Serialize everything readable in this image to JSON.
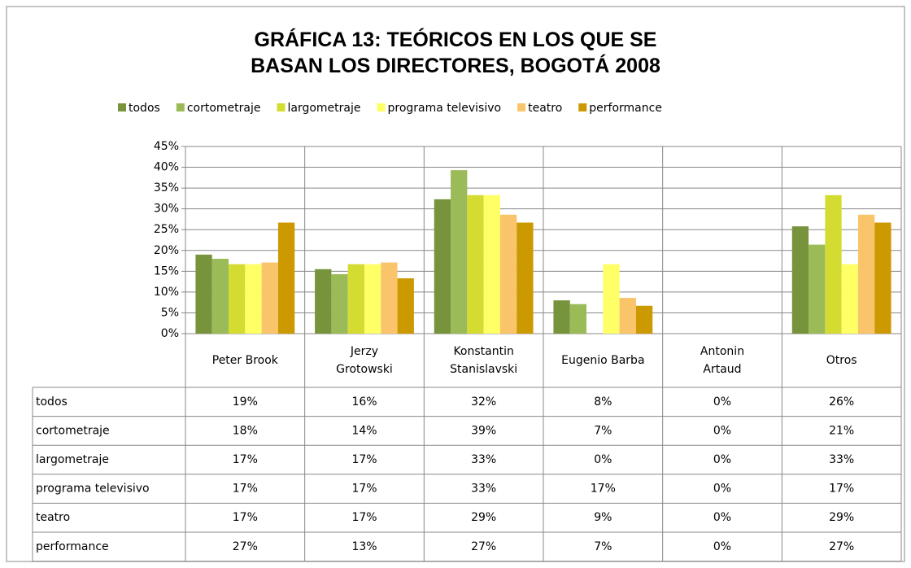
{
  "chart_data": {
    "type": "bar",
    "title": "GRÁFICA 13: TEÓRICOS EN LOS QUE SE BASAN LOS DIRECTORES, BOGOTÁ 2008",
    "categories": [
      "Peter Brook",
      "Jerzy Grotowski",
      "Konstantin Stanislavski",
      "Eugenio Barba",
      "Antonin Artaud",
      "Otros"
    ],
    "series": [
      {
        "name": "todos",
        "color": "#77933c",
        "values": [
          19,
          15.5,
          32.3,
          8,
          0,
          25.8
        ],
        "value_labels": [
          "19%",
          "16%",
          "32%",
          "8%",
          "0%",
          "26%"
        ]
      },
      {
        "name": "cortometraje",
        "color": "#9bbb59",
        "values": [
          18,
          14.3,
          39.3,
          7.1,
          0,
          21.4
        ],
        "value_labels": [
          "18%",
          "14%",
          "39%",
          "7%",
          "0%",
          "21%"
        ]
      },
      {
        "name": "largometraje",
        "color": "#d4dc32",
        "values": [
          16.7,
          16.7,
          33.3,
          0,
          0,
          33.3
        ],
        "value_labels": [
          "17%",
          "17%",
          "33%",
          "0%",
          "0%",
          "33%"
        ]
      },
      {
        "name": "programa televisivo",
        "color": "#ffff66",
        "values": [
          16.7,
          16.7,
          33.3,
          16.7,
          0,
          16.7
        ],
        "value_labels": [
          "17%",
          "17%",
          "33%",
          "17%",
          "0%",
          "17%"
        ]
      },
      {
        "name": "teatro",
        "color": "#fac46b",
        "values": [
          17.1,
          17.1,
          28.6,
          8.6,
          0,
          28.6
        ],
        "value_labels": [
          "17%",
          "17%",
          "29%",
          "9%",
          "0%",
          "29%"
        ]
      },
      {
        "name": "performance",
        "color": "#cc9900",
        "values": [
          26.7,
          13.3,
          26.7,
          6.7,
          0,
          26.7
        ],
        "value_labels": [
          "27%",
          "13%",
          "27%",
          "7%",
          "0%",
          "27%"
        ]
      }
    ],
    "ylim": [
      0,
      45
    ],
    "yticks": [
      {
        "value": 0,
        "label": "0%"
      },
      {
        "value": 5,
        "label": "5%"
      },
      {
        "value": 10,
        "label": "10%"
      },
      {
        "value": 15,
        "label": "15%"
      },
      {
        "value": 20,
        "label": "20%"
      },
      {
        "value": 25,
        "label": "25%"
      },
      {
        "value": 30,
        "label": "30%"
      },
      {
        "value": 35,
        "label": "35%"
      },
      {
        "value": 40,
        "label": "40%"
      },
      {
        "value": 45,
        "label": "45%"
      }
    ],
    "grid": true,
    "legend": "top"
  }
}
